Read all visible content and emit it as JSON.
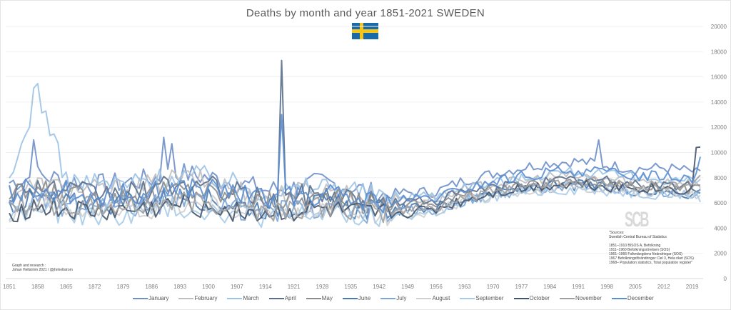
{
  "chart_data": {
    "type": "line",
    "title": "Deaths by month and year 1851-2021 SWEDEN",
    "xlabel": "",
    "ylabel": "",
    "ylim": [
      0,
      20000
    ],
    "xlim": [
      1851,
      2021
    ],
    "y_ticks": [
      0,
      2000,
      4000,
      6000,
      8000,
      10000,
      12000,
      14000,
      16000,
      18000,
      20000
    ],
    "x_ticks": [
      1851,
      1858,
      1865,
      1872,
      1879,
      1886,
      1893,
      1900,
      1907,
      1914,
      1921,
      1928,
      1935,
      1942,
      1949,
      1956,
      1963,
      1970,
      1977,
      1984,
      1991,
      1998,
      2005,
      2012,
      2019
    ],
    "grid": true,
    "legend_position": "bottom",
    "x": [
      1851,
      1858,
      1865,
      1872,
      1879,
      1886,
      1893,
      1900,
      1907,
      1914,
      1921,
      1928,
      1935,
      1942,
      1949,
      1956,
      1963,
      1970,
      1977,
      1984,
      1991,
      1998,
      2005,
      2012,
      2019,
      2021
    ],
    "series": [
      {
        "name": "January",
        "color": "#6f8fc9",
        "values": [
          7600,
          8200,
          7800,
          7400,
          7600,
          7900,
          8400,
          8000,
          7600,
          7000,
          7200,
          7600,
          7300,
          6600,
          6800,
          6900,
          7800,
          8300,
          8800,
          9200,
          9300,
          9000,
          8700,
          8800,
          8500,
          8200
        ]
      },
      {
        "name": "February",
        "color": "#bfbfbf",
        "values": [
          7000,
          7400,
          7200,
          7000,
          7100,
          7400,
          8000,
          7600,
          7100,
          6600,
          6800,
          7100,
          6700,
          6300,
          6300,
          6400,
          7000,
          7500,
          7700,
          8100,
          8100,
          7900,
          7700,
          7800,
          7600,
          7300
        ]
      },
      {
        "name": "March",
        "color": "#9dc3e6",
        "values": [
          7200,
          15000,
          7800,
          7600,
          7500,
          7800,
          8200,
          8100,
          7500,
          6900,
          7000,
          7500,
          7100,
          6500,
          6600,
          6600,
          7300,
          7600,
          7900,
          8400,
          8500,
          8200,
          8000,
          7900,
          7800,
          7500
        ]
      },
      {
        "name": "April",
        "color": "#5a6f8c",
        "values": [
          6800,
          7400,
          6900,
          6700,
          6800,
          7000,
          7500,
          7300,
          6800,
          6300,
          6500,
          6800,
          6400,
          6000,
          6100,
          6200,
          6800,
          7200,
          7500,
          7700,
          7800,
          7700,
          7500,
          7400,
          7300,
          7100
        ]
      },
      {
        "name": "May",
        "color": "#8c8c8c",
        "values": [
          6500,
          7000,
          6600,
          6400,
          6500,
          6700,
          7100,
          6900,
          6400,
          6000,
          6200,
          6400,
          6100,
          5800,
          5900,
          6000,
          6600,
          7000,
          7300,
          7500,
          7600,
          7500,
          7300,
          7200,
          7100,
          7000
        ]
      },
      {
        "name": "June",
        "color": "#4a7bb0",
        "values": [
          5900,
          6400,
          6000,
          5900,
          6000,
          6200,
          6500,
          6300,
          5900,
          5600,
          5700,
          5900,
          5600,
          5400,
          5500,
          5700,
          6300,
          6800,
          7100,
          7300,
          7400,
          7200,
          7000,
          6900,
          6700,
          6800
        ]
      },
      {
        "name": "July",
        "color": "#7ea6d8",
        "values": [
          5600,
          6100,
          5800,
          5600,
          5700,
          5800,
          6100,
          6000,
          5600,
          5300,
          5400,
          5600,
          5300,
          5200,
          5300,
          5500,
          6200,
          6700,
          7000,
          7200,
          7300,
          7200,
          7000,
          6800,
          6800,
          6700
        ]
      },
      {
        "name": "August",
        "color": "#d0d0d0",
        "values": [
          5300,
          5900,
          5500,
          5300,
          5400,
          5600,
          5900,
          5800,
          5400,
          5100,
          5200,
          5400,
          5100,
          5000,
          5200,
          5400,
          6100,
          6600,
          6900,
          7100,
          7300,
          7100,
          6900,
          6800,
          6800,
          6600
        ]
      },
      {
        "name": "September",
        "color": "#a9cbe8",
        "values": [
          5000,
          5500,
          5200,
          5000,
          5100,
          5300,
          5600,
          5500,
          5200,
          4900,
          5000,
          5200,
          4900,
          4800,
          5000,
          5300,
          6000,
          6500,
          6800,
          7000,
          7100,
          7000,
          6800,
          6700,
          6600,
          6500
        ]
      },
      {
        "name": "October",
        "color": "#44546a",
        "values": [
          5200,
          5700,
          5400,
          5200,
          5300,
          5500,
          5800,
          5700,
          5400,
          5100,
          5300,
          5400,
          5100,
          5000,
          5200,
          5500,
          6200,
          6800,
          7100,
          7400,
          7500,
          7300,
          7200,
          7100,
          7000,
          10400
        ]
      },
      {
        "name": "November",
        "color": "#a0a0a0",
        "values": [
          5600,
          6100,
          5800,
          5600,
          5700,
          5900,
          6200,
          6100,
          5800,
          5400,
          5600,
          5700,
          5400,
          5300,
          5500,
          5700,
          6400,
          7000,
          7300,
          7600,
          7700,
          7500,
          7400,
          7300,
          7500,
          8600
        ]
      },
      {
        "name": "December",
        "color": "#5b8ed0",
        "values": [
          6600,
          7300,
          6800,
          6600,
          6700,
          6900,
          7300,
          7100,
          6700,
          6200,
          6500,
          6700,
          6300,
          6000,
          6200,
          6400,
          7100,
          7700,
          8100,
          8400,
          8600,
          8400,
          8200,
          8200,
          8000,
          9600
        ]
      }
    ],
    "annotations": [
      {
        "series": "March",
        "x": 1857,
        "y": 15100,
        "label": "peak"
      },
      {
        "series": "April",
        "x": 1918,
        "y": 17300,
        "label": "peak"
      },
      {
        "series": "December",
        "x": 1918,
        "y": 13000,
        "label": "peak"
      },
      {
        "series": "January",
        "x": 1857,
        "y": 11000,
        "label": "peak"
      },
      {
        "series": "January",
        "x": 1889,
        "y": 11200,
        "label": "peak"
      },
      {
        "series": "January",
        "x": 1891,
        "y": 10700,
        "label": "peak"
      },
      {
        "series": "January",
        "x": 1996,
        "y": 11000,
        "label": "peak"
      },
      {
        "series": "October",
        "x": 2020,
        "y": 10400,
        "label": "peak"
      }
    ]
  },
  "credit": {
    "line1": "Graph and research :",
    "line2": "Johan Hellström 2021 / @jhnhellstrom"
  },
  "sources": {
    "text": "\"Sources:\nSwedish Central Bureau of Statistics\n\n1851–1910 BISOS A, Befolkning\n1911–1960 Befolkningsrörelsen (SOS)\n1961–1966 Folkmängdens förändringar (SOS)\n1967 Befolkningsförändringar: Del 3, Hela riket (SOS)\n1968– Population statistics, Total population register\""
  },
  "watermark": "SCB",
  "flag": "Sweden"
}
